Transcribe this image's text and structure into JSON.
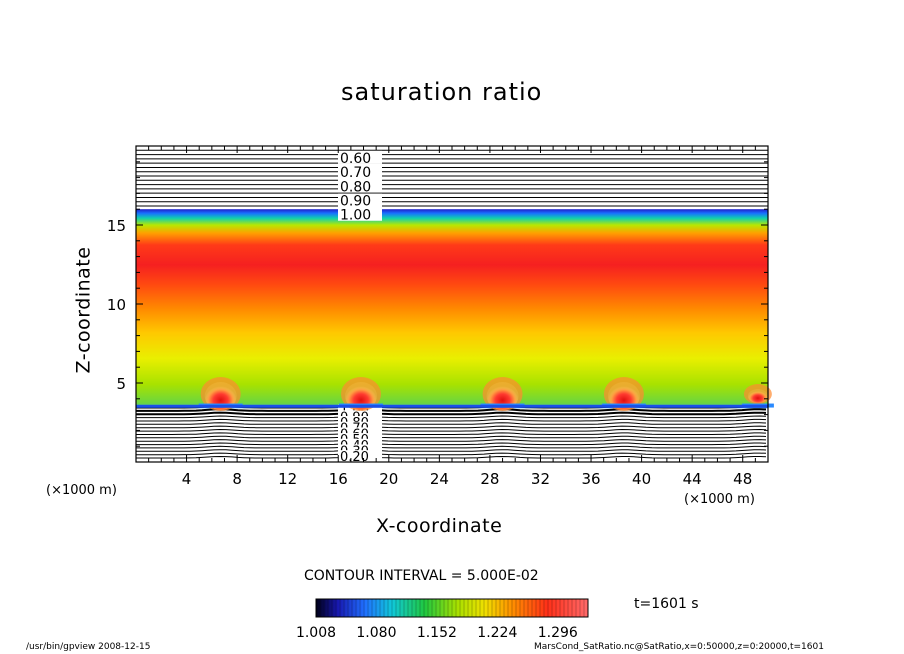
{
  "chart_data": {
    "type": "heatmap",
    "title": "saturation ratio",
    "xlabel": "X-coordinate",
    "ylabel": "Z-coordinate",
    "x_unit_label": "(×1000 m)",
    "y_unit_label": "(×1000 m)",
    "xlim": [
      0,
      50
    ],
    "ylim": [
      0,
      20
    ],
    "x_ticks": [
      4,
      8,
      12,
      16,
      20,
      24,
      28,
      32,
      36,
      40,
      44,
      48
    ],
    "y_ticks": [
      5,
      10,
      15
    ],
    "contour_interval_label": "CONTOUR INTERVAL = 5.000E-02",
    "contour_interval": 0.05,
    "upper_contour_labels": [
      "0.60",
      "0.70",
      "0.80",
      "0.90",
      "1.00"
    ],
    "lower_contour_labels": [
      "1.00",
      "0.90",
      "0.80",
      "0.70",
      "0.60",
      "0.50",
      "0.40",
      "0.30",
      "0.20"
    ],
    "colorbar": {
      "tick_labels": [
        "1.008",
        "1.080",
        "1.152",
        "1.224",
        "1.296"
      ],
      "range": [
        1.008,
        1.332
      ]
    },
    "cloud_cells_x": [
      6.7,
      17.8,
      29.0,
      38.6,
      49.2
    ],
    "time_label": "t=1601 s",
    "grid": false
  },
  "footer": {
    "left": "/usr/bin/gpview   2008-12-15",
    "right": "MarsCond_SatRatio.nc@SatRatio,x=0:50000,z=0:20000,t=1601"
  },
  "colors": {
    "background": "#ffffff",
    "frame": "#000000"
  }
}
